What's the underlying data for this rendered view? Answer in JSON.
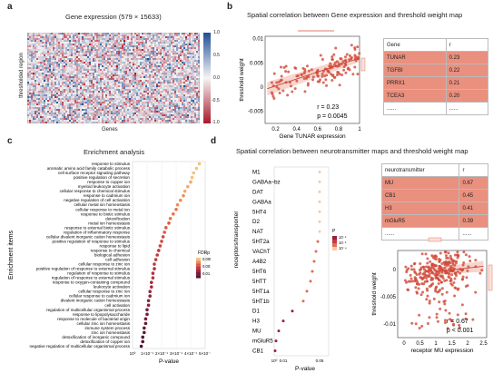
{
  "panels": {
    "a": "a",
    "b": "b",
    "c": "c",
    "d": "d"
  },
  "panel_a": {
    "title": "Gene expression (579 × 15633)",
    "ylabel": "thresholded region",
    "xlabel": "Genes",
    "colorbar_ticks": [
      "1.0",
      "0.5",
      "0.0",
      "-0.5",
      "-1.0"
    ],
    "colors": {
      "high": "#1f4e96",
      "mid": "#f5f5f5",
      "low": "#a8182a"
    }
  },
  "panel_b": {
    "title": "Spatial correlation between Gene expression and threshold weight map",
    "chart_data": {
      "type": "scatter",
      "xlabel": "Gene TUNAR expression",
      "ylabel": "threshold weight",
      "xlim": [
        0.1,
        1.0
      ],
      "ylim": [
        -0.0075,
        0.0105
      ],
      "x_ticks": [
        "0.2",
        "0.4",
        "0.6",
        "0.8",
        "1"
      ],
      "y_ticks": [
        "0.01",
        "0.005",
        "0",
        "-0.005"
      ],
      "annotation": [
        "r = 0.23",
        "p = 0.0045"
      ],
      "regression": {
        "intercept": -0.0012,
        "slope": 0.0072
      },
      "point_color": "#cf4a3a",
      "n_points": 140
    },
    "table": {
      "headers": [
        "Gene",
        "r"
      ],
      "rows": [
        [
          "TUNAR",
          "0.23"
        ],
        [
          "TGFBI",
          "0.22"
        ],
        [
          "PRRX1",
          "0.21"
        ],
        [
          "TCEA3",
          "0.20"
        ]
      ],
      "ellipsis": "......"
    }
  },
  "panel_c": {
    "title": "Enrichment analysis",
    "chart_data": {
      "type": "scatter",
      "xlabel": "P-value",
      "ylabel": "Enrichment items",
      "x_ticks": [
        "10⁰",
        "1×10⁻¹",
        "2×10⁻¹",
        "3×10⁻¹",
        "4×10⁻¹",
        "5×10⁻³"
      ],
      "legend_title": "FDRp",
      "legend_ticks": [
        "0.0002",
        "0.001",
        "0.01"
      ],
      "items": [
        "response to stimulus",
        "aromatic amino acid family catabolic process",
        "cell surface receptor signaling pathway",
        "positive regulation of secretion",
        "response to copper ion",
        "myeloid leukocyte activation",
        "cellular response to chemical stimulus",
        "response to cadmium ion",
        "negative regulation of cell activation",
        "cellular metal ion homeostasis",
        "cellular response to metal ion",
        "response to biotic stimulus",
        "detoxification",
        "metal ion homeostasis",
        "response to external biotic stimulus",
        "regulation of inflammatory response",
        "cellular divalent inorganic cation homeostasis",
        "positive regulation of response to stimulus",
        "response to lipid",
        "response to chemical",
        "biological adhesion",
        "cell adhesion",
        "cellular response to zinc ion",
        "positive regulation of response to external stimulus",
        "regulation of response to stimulus",
        "regulation of response to external stimulus",
        "response to oxygen-containing compound",
        "leukocyte activation",
        "cellular response to zinc ion",
        "cellular response to cadmium ion",
        "divalent inorganic cation homeostasis",
        "cell activation",
        "regulation of multicellular organismal process",
        "response to lipopolysaccharide",
        "response to molecule of bacterial origin",
        "cellular zinc ion homeostasis",
        "immune system process",
        "zinc ion homeostasis",
        "detoxification of inorganic compound",
        "detoxification of copper ion",
        "negative regulation of multicellular organismal process"
      ],
      "values": [
        0.46,
        0.44,
        0.42,
        0.41,
        0.4,
        0.38,
        0.36,
        0.35,
        0.33,
        0.31,
        0.3,
        0.28,
        0.26,
        0.25,
        0.23,
        0.22,
        0.21,
        0.2,
        0.19,
        0.18,
        0.17,
        0.16,
        0.15,
        0.15,
        0.14,
        0.14,
        0.13,
        0.13,
        0.12,
        0.12,
        0.11,
        0.11,
        0.1,
        0.1,
        0.09,
        0.09,
        0.08,
        0.08,
        0.07,
        0.07,
        0.06
      ],
      "colors": [
        "#f6c27a",
        "#f3a86a",
        "#ef8d5b",
        "#e8724f",
        "#de5946",
        "#d14641",
        "#c23a40",
        "#b1313f",
        "#9f2a3e",
        "#8b233c",
        "#771d3a",
        "#641836",
        "#521332"
      ]
    }
  },
  "panel_d": {
    "title": "Spatial correlation between neurotransmitter maps and threshold weight map",
    "dot_chart": {
      "type": "scatter",
      "xlabel": "P-value",
      "ylabel": "receptors/transporter",
      "x_ticks": [
        "10⁰",
        "0.01",
        "0.05"
      ],
      "legend_title": "P",
      "legend_ticks": [
        "10⁻²",
        "10⁻³",
        "10⁻⁴"
      ],
      "items": [
        "M1",
        "GABAa–bz",
        "DAT",
        "GABAa",
        "5HT4",
        "D2",
        "NAT",
        "5HT2a",
        "VAChT",
        "A4B2",
        "5HT6",
        "5HTT",
        "5HT1a",
        "5HT1b",
        "D1",
        "H3",
        "MU",
        "mGluR5",
        "CB1"
      ],
      "values": [
        0.05,
        0.05,
        0.05,
        0.05,
        0.05,
        0.05,
        0.05,
        0.048,
        0.046,
        0.044,
        0.042,
        0.04,
        0.036,
        0.032,
        0.02,
        0.01,
        0.005,
        0.002,
        0.001
      ]
    },
    "table": {
      "headers": [
        "neurotransmitter",
        "r"
      ],
      "rows": [
        [
          "MU",
          "0.67"
        ],
        [
          "CB1",
          "0.45"
        ],
        [
          "H3",
          "0.41"
        ],
        [
          "mGluR5",
          "0.39"
        ]
      ],
      "ellipsis": "......"
    },
    "scatter": {
      "type": "scatter",
      "xlabel": "receptor MU expression",
      "ylabel": "threshold weight",
      "xlim": [
        -0.2,
        2.6
      ],
      "ylim": [
        -0.0125,
        0.0035
      ],
      "x_ticks": [
        "0",
        "0.5",
        "1",
        "1.5",
        "2",
        "2.5"
      ],
      "y_ticks": [
        "0",
        "-0.005",
        "-0.01"
      ],
      "annotation": [
        "r = 0.67",
        "p < 0.001"
      ],
      "point_color": "#cf4a3a",
      "n_points": 300
    }
  }
}
